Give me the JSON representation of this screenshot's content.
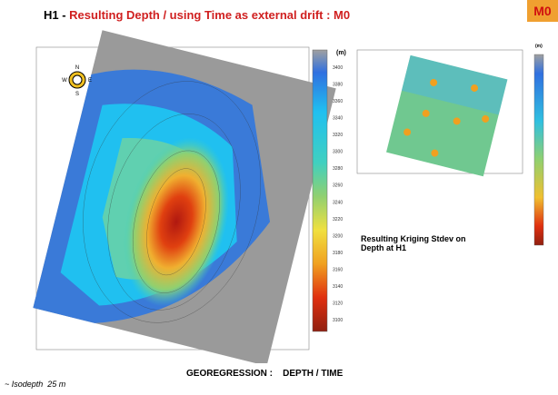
{
  "header": {
    "prefix": "H1 - ",
    "title": "Resulting Depth / using Time as external drift : M0",
    "badge": "M0"
  },
  "depth_map": {
    "compass": [
      "N",
      "E",
      "S",
      "W"
    ],
    "legend": {
      "unit": "(m)",
      "labels": [
        3400,
        3380,
        3360,
        3340,
        3320,
        3300,
        3280,
        3260,
        3240,
        3220,
        3200,
        3180,
        3160,
        3140,
        3120,
        3100
      ]
    }
  },
  "stdev_map": {
    "legend_unit": "(m)",
    "caption": "Resulting Kriging Stdev on Depth at H1"
  },
  "footer": {
    "caption": "GEOREGRESSION :    DEPTH / TIME",
    "note": "~ Isodepth  25 m"
  }
}
